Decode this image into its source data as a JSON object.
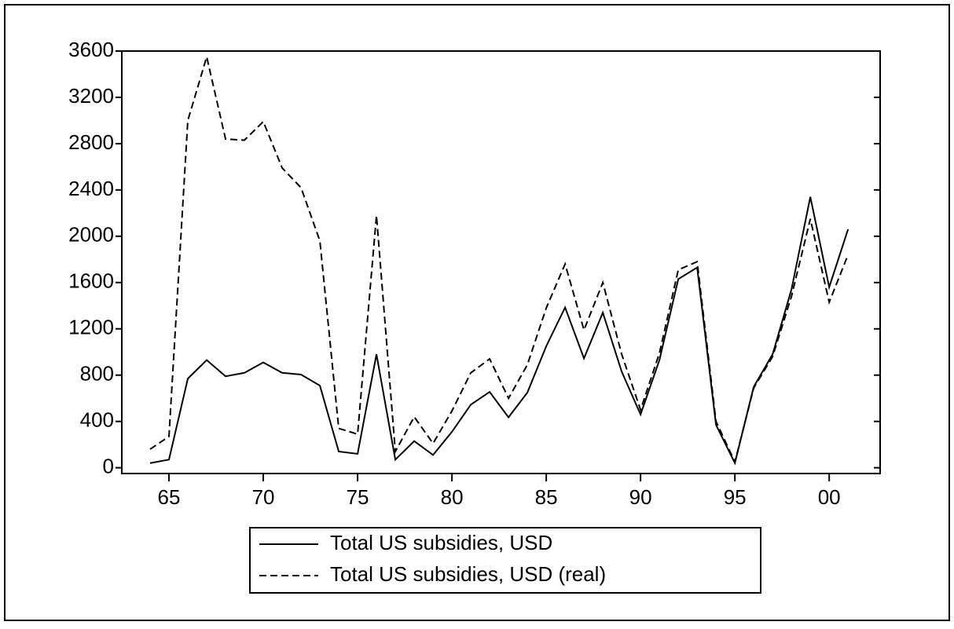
{
  "chart_data": {
    "type": "line",
    "x": [
      1964,
      1965,
      1966,
      1967,
      1968,
      1969,
      1970,
      1971,
      1972,
      1973,
      1974,
      1975,
      1976,
      1977,
      1978,
      1979,
      1980,
      1981,
      1982,
      1983,
      1984,
      1985,
      1986,
      1987,
      1988,
      1989,
      1990,
      1991,
      1992,
      1993,
      1994,
      1995,
      1996,
      1997,
      1998,
      1999,
      2000,
      2001
    ],
    "series": [
      {
        "name": "Total US subsidies, USD",
        "color": "#000000",
        "style": "solid",
        "values": [
          40,
          70,
          770,
          930,
          790,
          820,
          910,
          820,
          805,
          710,
          140,
          120,
          980,
          70,
          230,
          110,
          310,
          545,
          655,
          435,
          650,
          1050,
          1385,
          945,
          1340,
          830,
          460,
          930,
          1630,
          1730,
          370,
          40,
          700,
          980,
          1540,
          2340,
          1560,
          2060
        ]
      },
      {
        "name": "Total US subsidies, USD (real)",
        "color": "#000000",
        "style": "dashed",
        "values": [
          160,
          270,
          3000,
          3550,
          2840,
          2830,
          2990,
          2590,
          2420,
          1960,
          340,
          290,
          2180,
          140,
          440,
          210,
          490,
          820,
          940,
          600,
          890,
          1380,
          1760,
          1190,
          1600,
          980,
          500,
          990,
          1710,
          1780,
          400,
          50,
          690,
          960,
          1480,
          2150,
          1430,
          1840
        ]
      }
    ],
    "xlim": [
      1962.5,
      2002.7
    ],
    "xticks": [
      {
        "value": 1965,
        "label": "65"
      },
      {
        "value": 1970,
        "label": "70"
      },
      {
        "value": 1975,
        "label": "75"
      },
      {
        "value": 1980,
        "label": "80"
      },
      {
        "value": 1985,
        "label": "85"
      },
      {
        "value": 1990,
        "label": "90"
      },
      {
        "value": 1995,
        "label": "95"
      },
      {
        "value": 2000,
        "label": "00"
      }
    ],
    "ylim": [
      -50,
      3600
    ],
    "yticks": [
      0,
      400,
      800,
      1200,
      1600,
      2000,
      2400,
      2800,
      3200,
      3600
    ],
    "grid": false,
    "legend": "bottom"
  }
}
